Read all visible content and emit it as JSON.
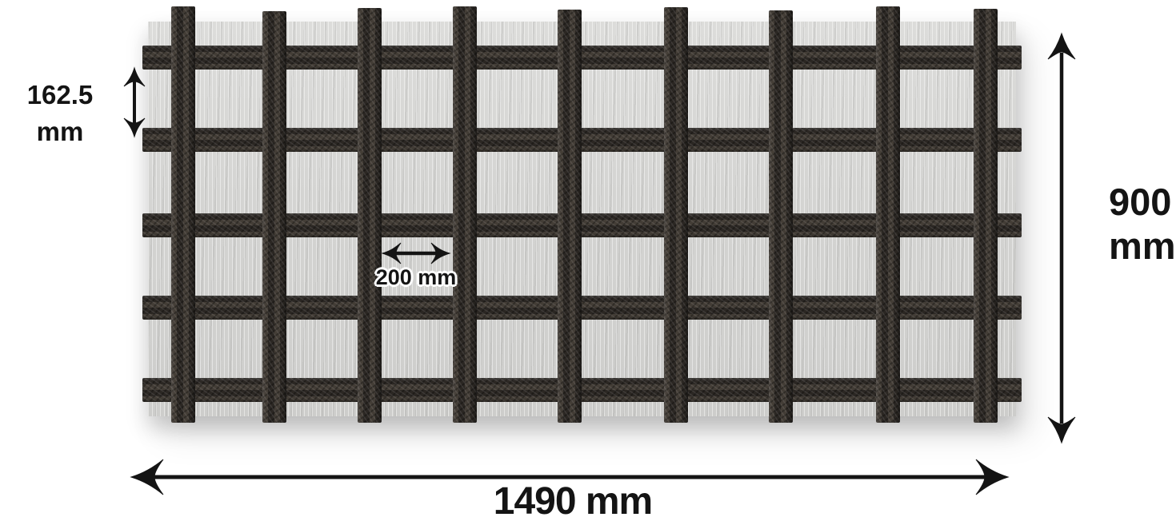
{
  "diagram": {
    "labels": {
      "row_spacing_value": "162.5",
      "row_spacing_unit": "mm",
      "column_spacing": "200 mm",
      "total_width": "1490 mm",
      "total_height_value": "900",
      "total_height_unit": "mm"
    },
    "grid": {
      "horizontal_bars": 5,
      "vertical_bars": 9
    },
    "icons": {
      "row_spacing": "vertical-double-arrow-icon",
      "column_spacing": "horizontal-double-arrow-icon",
      "total_width": "horizontal-double-arrow-icon",
      "total_height": "vertical-double-arrow-icon"
    },
    "colors": {
      "background": "#ffffff",
      "panel": "#d4d4d2",
      "bar": "#35302b",
      "annotation": "#141414"
    }
  }
}
